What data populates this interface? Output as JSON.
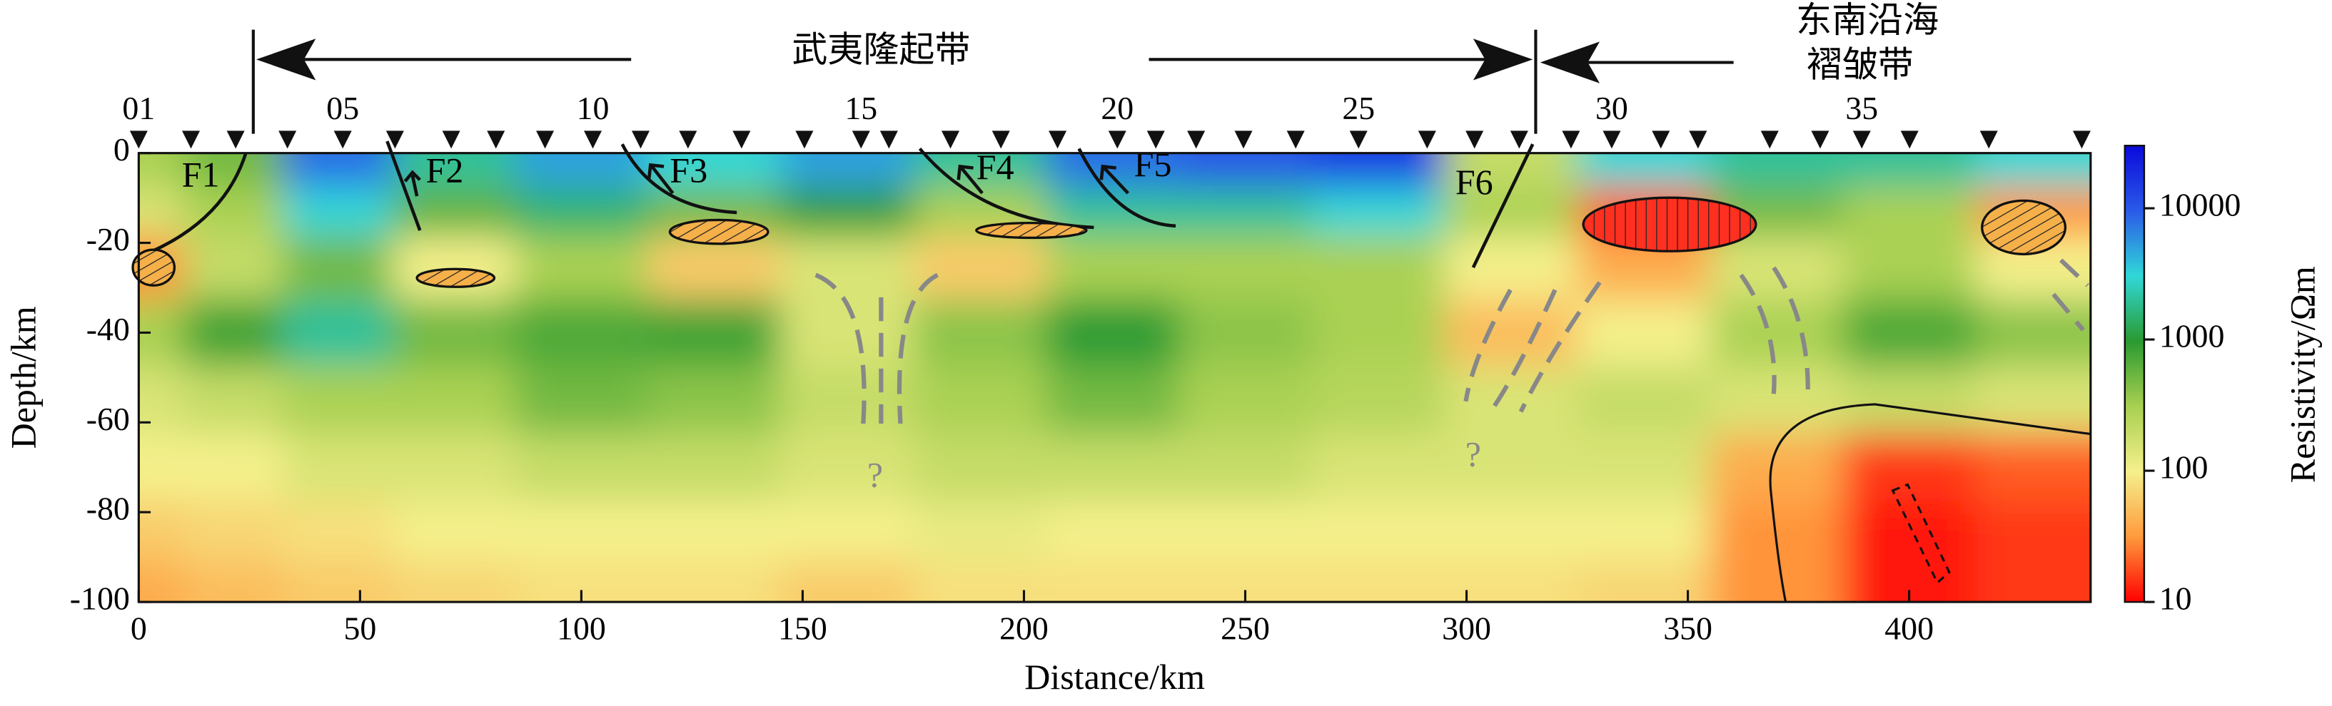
{
  "chart_data": {
    "type": "heatmap",
    "x_label": "Distance/km",
    "y_label": "Depth/km",
    "xlim": [
      0,
      441
    ],
    "ylim": [
      -100,
      0
    ],
    "xticks": [
      0,
      50,
      100,
      150,
      200,
      250,
      300,
      350,
      400
    ],
    "yticks": [
      0,
      -20,
      -40,
      -60,
      -80,
      -100
    ],
    "x": [
      0,
      20,
      45,
      70,
      100,
      130,
      160,
      190,
      220,
      250,
      280,
      310,
      340,
      370,
      400,
      430
    ],
    "y": [
      -3,
      -12,
      -25,
      -40,
      -55,
      -70,
      -85,
      -97
    ],
    "values": [
      [
        300,
        500,
        8000,
        2000,
        5000,
        3000,
        5000,
        2000,
        8000,
        10000,
        15000,
        200,
        3000,
        2000,
        2000,
        3000
      ],
      [
        150,
        300,
        3000,
        600,
        1500,
        500,
        1000,
        300,
        2000,
        2000,
        3000,
        300,
        20,
        500,
        300,
        30
      ],
      [
        30,
        200,
        500,
        100,
        300,
        60,
        150,
        60,
        300,
        300,
        300,
        100,
        40,
        150,
        300,
        100
      ],
      [
        300,
        800,
        2000,
        500,
        700,
        800,
        150,
        400,
        1000,
        400,
        300,
        50,
        100,
        300,
        700,
        400
      ],
      [
        150,
        200,
        300,
        300,
        500,
        400,
        200,
        300,
        500,
        300,
        250,
        150,
        200,
        150,
        200,
        150
      ],
      [
        100,
        100,
        150,
        150,
        200,
        200,
        150,
        200,
        200,
        200,
        150,
        150,
        150,
        40,
        15,
        20
      ],
      [
        60,
        70,
        80,
        100,
        100,
        100,
        100,
        120,
        100,
        100,
        100,
        100,
        100,
        30,
        12,
        15
      ],
      [
        40,
        50,
        60,
        70,
        80,
        80,
        60,
        80,
        80,
        80,
        80,
        80,
        70,
        30,
        12,
        15
      ]
    ],
    "colorbar": {
      "label": "Resistivity/Ωm",
      "log": true,
      "clim": [
        10,
        30000
      ],
      "ticks": [
        10,
        100,
        1000,
        10000
      ],
      "colors": [
        "#ff0000",
        "#ff9a3c",
        "#f5f08c",
        "#a8d050",
        "#2a9a30",
        "#30d8d8",
        "#2a5ae8",
        "#0a0adc"
      ]
    },
    "stations": [
      0,
      11.8,
      21.9,
      33.6,
      46.1,
      57.9,
      70.6,
      80.7,
      91.8,
      102.6,
      113.4,
      124.1,
      136.2,
      150.4,
      163.2,
      169.5,
      183.4,
      194.8,
      207.6,
      221.1,
      229.8,
      238.9,
      249.6,
      261.4,
      275.6,
      291.1,
      301.8,
      311.9,
      323.6,
      332.8,
      343.9,
      352.3,
      368.5,
      379.9,
      389.3,
      400.1,
      418.0,
      439.0
    ],
    "station_labels": [
      {
        "value": 0,
        "label": "01"
      },
      {
        "value": 46.1,
        "label": "05"
      },
      {
        "value": 102.6,
        "label": "10"
      },
      {
        "value": 163.2,
        "label": "15"
      },
      {
        "value": 221.1,
        "label": "20"
      },
      {
        "value": 275.6,
        "label": "25"
      },
      {
        "value": 332.8,
        "label": "30"
      },
      {
        "value": 389.3,
        "label": "35"
      }
    ]
  },
  "annotations": {
    "uplift": "武夷隆起带",
    "fold_belt": [
      "东南沿海",
      "褶皱带"
    ],
    "faults": [
      "F1",
      "F2",
      "F3",
      "F4",
      "F5",
      "F6"
    ],
    "unknown": [
      "?",
      "?"
    ]
  }
}
